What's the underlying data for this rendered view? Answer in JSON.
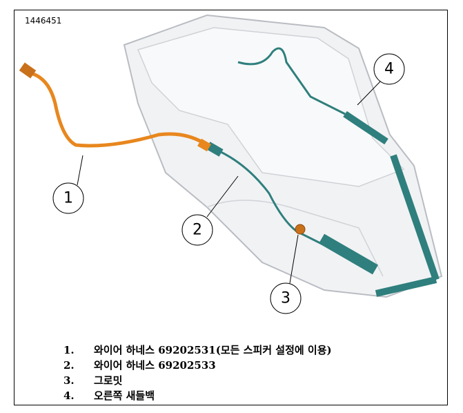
{
  "figure_id": "1446451",
  "callouts": [
    "1",
    "2",
    "3",
    "4"
  ],
  "items": [
    {
      "number": "1.",
      "text": "와이어 하네스 69202531(모든 스피커 설정에 이용)"
    },
    {
      "number": "2.",
      "text": "와이어 하네스 69202533"
    },
    {
      "number": "3.",
      "text": "그로밋"
    },
    {
      "number": "4.",
      "text": "오른쪽 새들백"
    }
  ]
}
